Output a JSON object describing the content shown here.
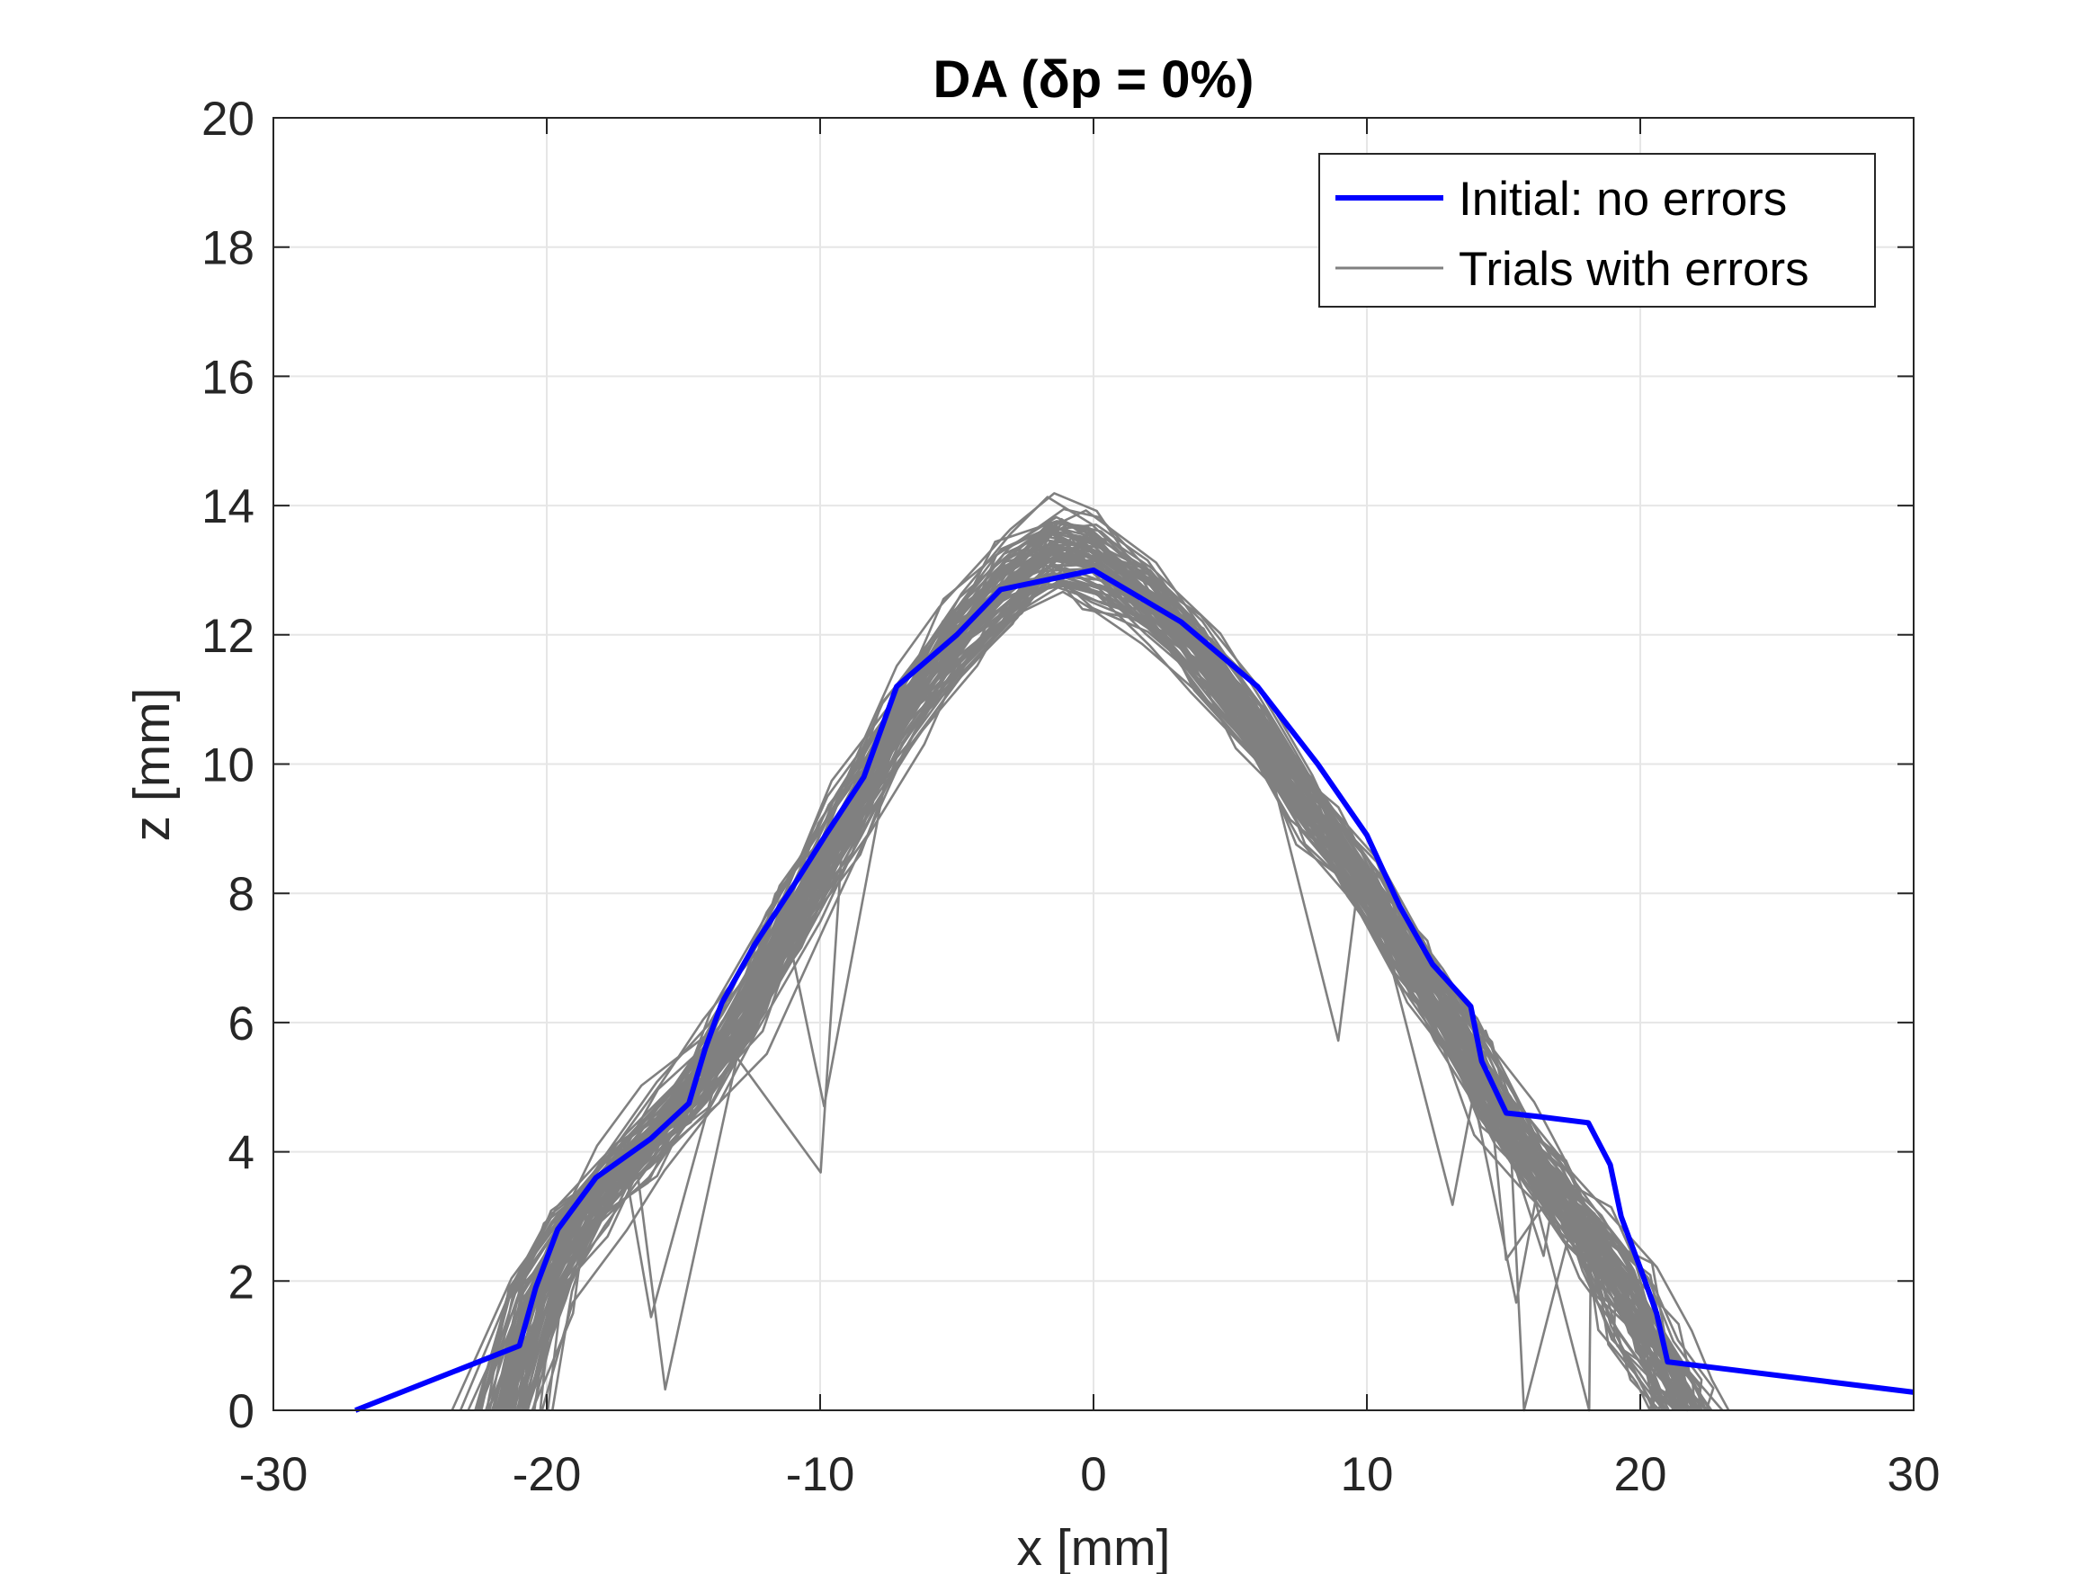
{
  "chart_data": {
    "type": "line",
    "title": "DA (δp = 0%)",
    "xlabel": "x [mm]",
    "ylabel": "z [mm]",
    "xlim": [
      -30,
      30
    ],
    "ylim": [
      0,
      20
    ],
    "xticks": [
      -30,
      -20,
      -10,
      0,
      10,
      20,
      30
    ],
    "yticks": [
      0,
      2,
      4,
      6,
      8,
      10,
      12,
      14,
      16,
      18,
      20
    ],
    "xtick_labels": [
      "-30",
      "-20",
      "-10",
      "0",
      "10",
      "20",
      "30"
    ],
    "ytick_labels": [
      "0",
      "2",
      "4",
      "6",
      "8",
      "10",
      "12",
      "14",
      "16",
      "18",
      "20"
    ],
    "grid": true,
    "legend_position": "top-right",
    "series": [
      {
        "name": "Initial: no errors",
        "color": "#0000ff",
        "x": [
          -27.0,
          -21.0,
          -20.4,
          -19.6,
          -18.2,
          -16.2,
          -14.8,
          -14.2,
          -13.6,
          -12.4,
          -11.0,
          -9.8,
          -8.4,
          -7.2,
          -5.0,
          -3.4,
          0.0,
          3.2,
          6.0,
          8.2,
          10.0,
          11.2,
          12.4,
          13.8,
          14.2,
          15.1,
          16.2,
          18.1,
          18.9,
          19.3,
          20.0,
          20.6,
          21.0,
          30.0
        ],
        "y": [
          0.0,
          1.0,
          1.9,
          2.8,
          3.6,
          4.2,
          4.75,
          5.6,
          6.3,
          7.2,
          8.1,
          8.9,
          9.8,
          11.2,
          12.0,
          12.7,
          13.0,
          12.2,
          11.2,
          10.0,
          8.9,
          7.8,
          6.9,
          6.25,
          5.4,
          4.6,
          4.55,
          4.45,
          3.8,
          3.0,
          2.2,
          1.5,
          0.75,
          0.28
        ]
      },
      {
        "name": "Trials with errors",
        "color": "#808080",
        "count": 80
      }
    ]
  },
  "legend": {
    "items": [
      {
        "label": "Initial: no errors",
        "color": "#0000ff"
      },
      {
        "label": "Trials with errors",
        "color": "#808080"
      }
    ]
  }
}
